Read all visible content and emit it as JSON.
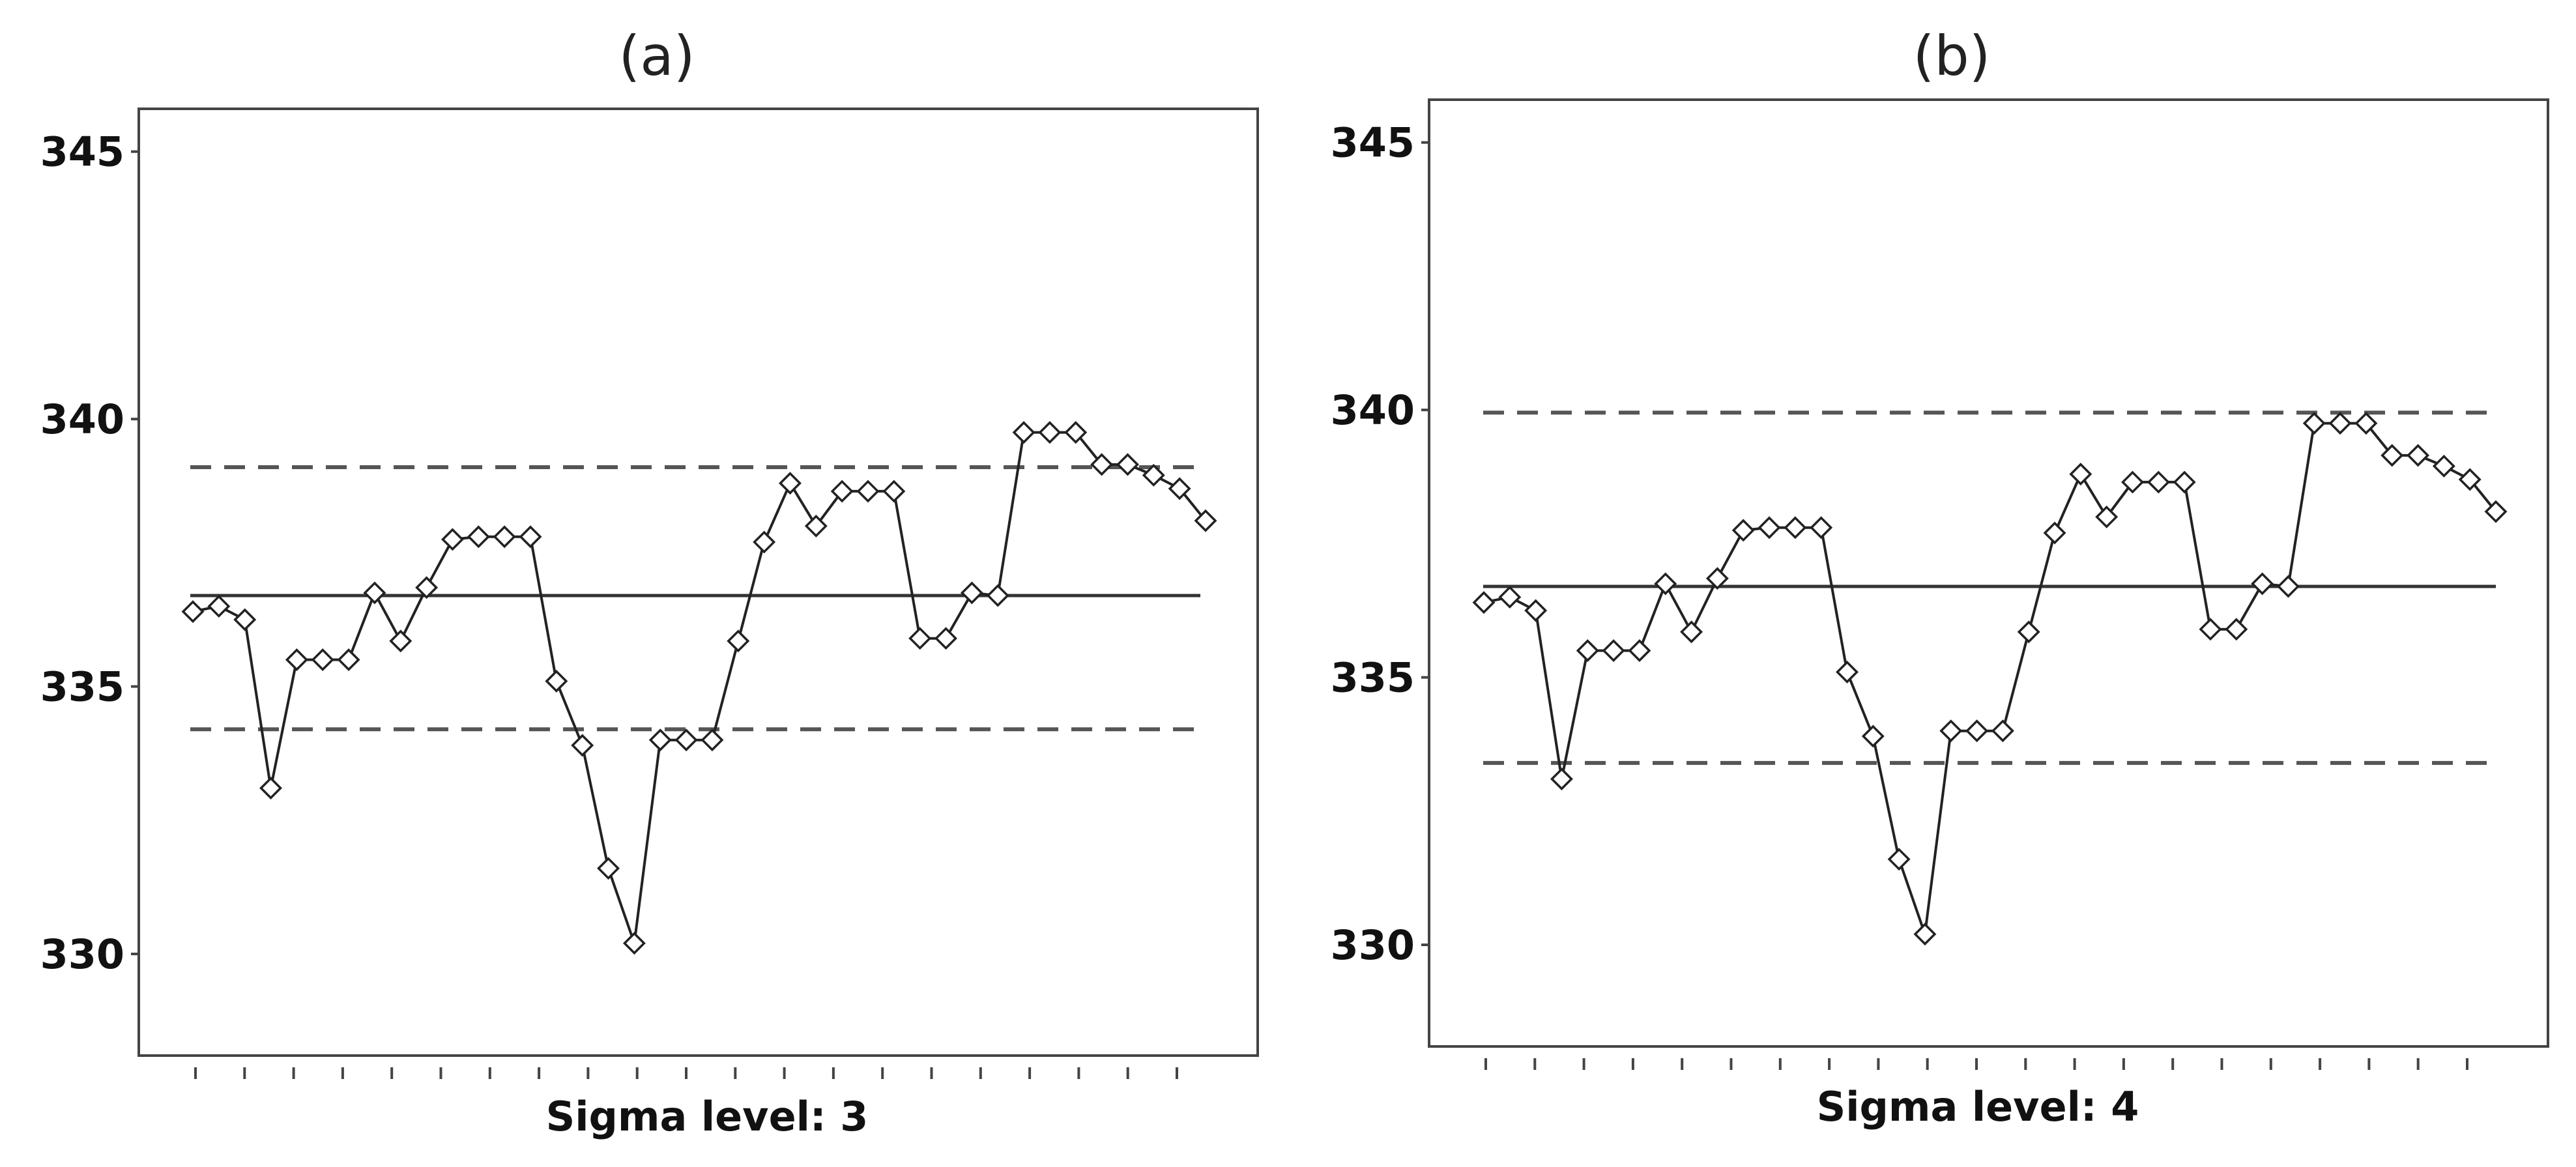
{
  "chart_data": [
    {
      "type": "line",
      "title": "(a)",
      "xlabel": "Sigma level: 3",
      "ylabel": "",
      "ylim": [
        328.1,
        345.8
      ],
      "yticks": [
        330,
        335,
        340,
        345
      ],
      "xlim": [
        0,
        40
      ],
      "x_tick_count": 21,
      "center_line": 336.7,
      "upper_limit": 339.1,
      "lower_limit": 334.2,
      "series": [
        {
          "values": [
            336.4,
            336.5,
            336.25,
            333.1,
            335.5,
            335.5,
            335.5,
            336.75,
            335.85,
            336.85,
            337.75,
            337.8,
            337.8,
            337.8,
            335.1,
            333.9,
            331.6,
            330.2,
            334.0,
            334.0,
            334.0,
            335.85,
            337.7,
            338.8,
            338.0,
            338.65,
            338.65,
            338.65,
            335.9,
            335.9,
            336.75,
            336.7,
            339.75,
            339.75,
            339.75,
            339.15,
            339.15,
            338.95,
            338.7,
            338.1
          ]
        }
      ],
      "legend": "none",
      "grid": false
    },
    {
      "type": "line",
      "title": "(b)",
      "xlabel": "Sigma level: 4",
      "ylabel": "",
      "ylim": [
        328.1,
        345.8
      ],
      "yticks": [
        330,
        335,
        340,
        345
      ],
      "xlim": [
        0,
        40
      ],
      "x_tick_count": 21,
      "center_line": 336.7,
      "upper_limit": 339.95,
      "lower_limit": 333.4,
      "series": [
        {
          "values": [
            336.4,
            336.5,
            336.25,
            333.1,
            335.5,
            335.5,
            335.5,
            336.75,
            335.85,
            336.85,
            337.75,
            337.8,
            337.8,
            337.8,
            335.1,
            333.9,
            331.6,
            330.2,
            334.0,
            334.0,
            334.0,
            335.85,
            337.7,
            338.8,
            338.0,
            338.65,
            338.65,
            338.65,
            335.9,
            335.9,
            336.75,
            336.7,
            339.75,
            339.75,
            339.75,
            339.15,
            339.15,
            338.95,
            338.7,
            338.1
          ]
        }
      ],
      "legend": "none",
      "grid": false
    }
  ]
}
